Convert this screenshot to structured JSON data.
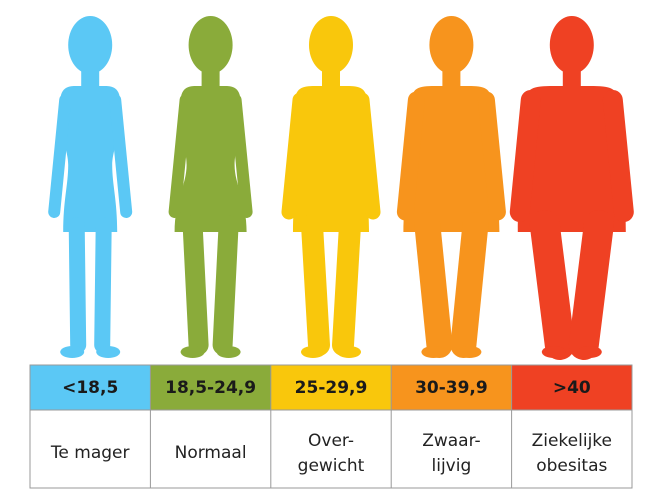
{
  "categories": [
    {
      "range": "<18,5",
      "label_lines": [
        "Te mager"
      ],
      "color": "#5bc8f5"
    },
    {
      "range": "18,5-24,9",
      "label_lines": [
        "Normaal"
      ],
      "color": "#8aab3a"
    },
    {
      "range": "25-29,9",
      "label_lines": [
        "Over-",
        "gewicht"
      ],
      "color": "#f9c70c"
    },
    {
      "range": "30-39,9",
      "label_lines": [
        "Zwaar-",
        "lijvig"
      ],
      "color": "#f7941d"
    },
    {
      "range": ">40",
      "label_lines": [
        "Ziekelijke",
        "obesitas"
      ],
      "color": "#ef4123"
    }
  ]
}
